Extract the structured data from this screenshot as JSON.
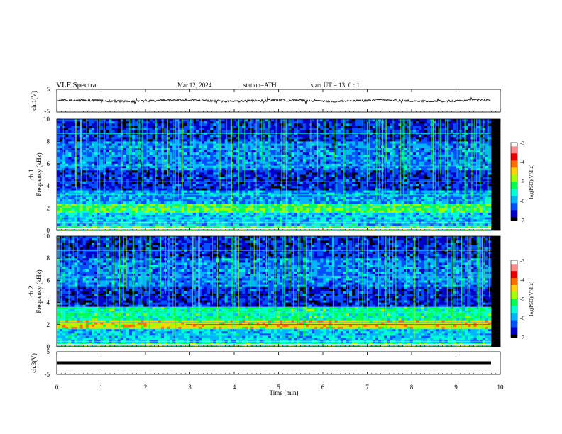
{
  "header": {
    "title": "VLF Spectra",
    "date": "Mar.12, 2024",
    "station": "station=ATH",
    "start": "start UT = 13: 0 : 1"
  },
  "chart_data": [
    {
      "type": "line",
      "name": "ch1-waveform",
      "ylabel": "ch.1(V)",
      "ylim": [
        -5,
        5
      ],
      "yticks": [
        "5",
        "-5"
      ],
      "xlim": [
        0,
        10
      ]
    },
    {
      "type": "heatmap",
      "name": "ch1-spectrogram",
      "ylabel": "ch.1 Frequency (kHz)",
      "ylabel_line1": "ch.1",
      "ylabel_line2": "Frequency (kHz)",
      "ylim": [
        0,
        10
      ],
      "yticks": [
        "0",
        "2",
        "4",
        "6",
        "8",
        "10"
      ],
      "xlim": [
        0,
        10
      ],
      "colorbar": {
        "label": "log(PSD)(V²/Hz)",
        "range": [
          -7,
          -3
        ],
        "ticks": [
          "-3",
          "-4",
          "-5",
          "-6",
          "-7"
        ],
        "colors": [
          "#000000",
          "#0000c8",
          "#0050ff",
          "#00b4ff",
          "#00ffd2",
          "#00ff50",
          "#a0ff00",
          "#ffd200",
          "#ff6e00",
          "#e60000",
          "#ff8c8c",
          "#ffffff"
        ]
      }
    },
    {
      "type": "heatmap",
      "name": "ch2-spectrogram",
      "ylabel": "ch.2 Frequency (kHz)",
      "ylabel_line1": "ch.2",
      "ylabel_line2": "Frequency (kHz)",
      "ylim": [
        0,
        10
      ],
      "yticks": [
        "0",
        "2",
        "4",
        "6",
        "8",
        "10"
      ],
      "xlim": [
        0,
        10
      ],
      "colorbar": {
        "label": "log(PSD)(V²/Hz)",
        "range": [
          -7,
          -3
        ],
        "ticks": [
          "-3",
          "-4",
          "-5",
          "-6",
          "-7"
        ],
        "colors": [
          "#000000",
          "#0000c8",
          "#0050ff",
          "#00b4ff",
          "#00ffd2",
          "#00ff50",
          "#a0ff00",
          "#ffd200",
          "#ff6e00",
          "#e60000",
          "#ff8c8c",
          "#ffffff"
        ]
      }
    },
    {
      "type": "line",
      "name": "ch3-waveform",
      "ylabel": "ch.3(V)",
      "ylim": [
        -5,
        5
      ],
      "yticks": [
        "5",
        "-5"
      ],
      "xlim": [
        0,
        10
      ]
    }
  ],
  "xaxis": {
    "label": "Time (min)",
    "ticks": [
      "0",
      "1",
      "2",
      "3",
      "4",
      "5",
      "6",
      "7",
      "8",
      "9",
      "10"
    ]
  }
}
